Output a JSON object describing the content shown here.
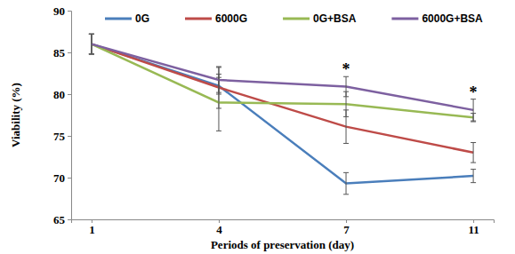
{
  "chart_data": {
    "type": "line",
    "xlabel": "Periods of preservation (day)",
    "ylabel": "Viability (%)",
    "categories": [
      "1",
      "4",
      "7",
      "11"
    ],
    "series": [
      {
        "name": "0G",
        "color": "#4a7ebb",
        "values": [
          86,
          81,
          69.3,
          70.2
        ],
        "errors": [
          1.2,
          1.0,
          1.3,
          0.8
        ]
      },
      {
        "name": "6000G",
        "color": "#be4b48",
        "values": [
          86,
          80.8,
          76.1,
          73.0
        ],
        "errors": [
          1.2,
          2.5,
          2.0,
          1.2
        ]
      },
      {
        "name": "0G+BSA",
        "color": "#98b954",
        "values": [
          86,
          79,
          78.8,
          77.2
        ],
        "errors": [
          1.2,
          3.4,
          1.5,
          0.5
        ]
      },
      {
        "name": "6000G+BSA",
        "color": "#7d60a0",
        "values": [
          86,
          81.7,
          80.9,
          78.1
        ],
        "errors": [
          1.2,
          1.5,
          1.2,
          1.3
        ]
      }
    ],
    "annotations": [
      {
        "text": "*",
        "x": "7"
      },
      {
        "text": "*",
        "x": "11"
      }
    ],
    "ylim": [
      65,
      90
    ],
    "yticks": [
      65,
      70,
      75,
      80,
      85,
      90
    ],
    "grid": false,
    "legend": "top"
  }
}
